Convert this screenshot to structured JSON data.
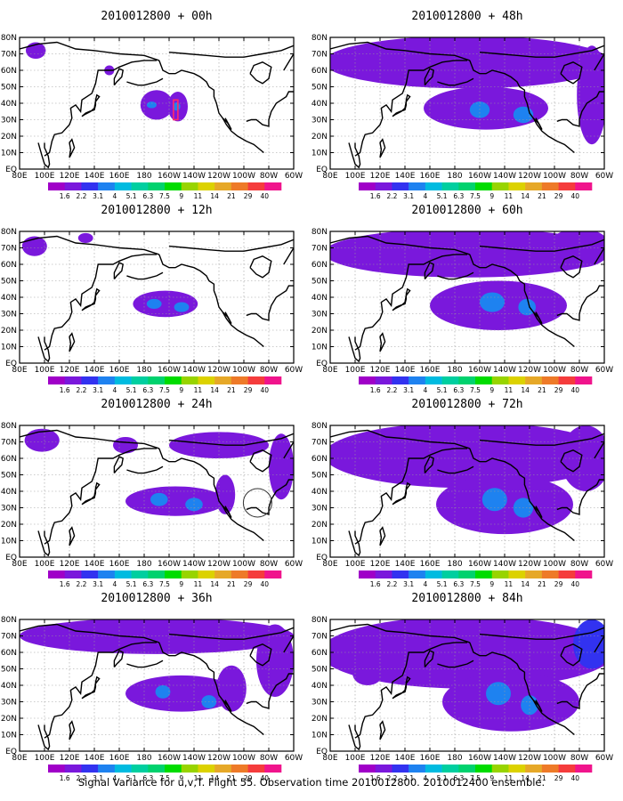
{
  "caption": "Signal Variance for u,v,T. Flight 55. Observation time 2010012800. 2010012400 ensemble.",
  "colors": {
    "background": "#ffffff",
    "coast": "#000000",
    "grid": "#9a9a9a",
    "marker": "#ff2a6a",
    "circle": "#333333"
  },
  "colorbar": {
    "labels": [
      "1.6",
      "2.2",
      "3.1",
      "4",
      "5.1",
      "6.3",
      "7.5",
      "9",
      "11",
      "14",
      "21",
      "29",
      "40"
    ],
    "colors": [
      "#a000c8",
      "#7a18dc",
      "#3232f0",
      "#1e82f0",
      "#00bbe0",
      "#00cfa0",
      "#00d26e",
      "#00dc00",
      "#98d400",
      "#dcd200",
      "#e6a828",
      "#ee7a28",
      "#f53c3c",
      "#f0148c"
    ]
  },
  "chart_data": [
    {
      "type": "heatmap",
      "title": "2010012800 + 00h",
      "xticks": [
        "80E",
        "100E",
        "120E",
        "140E",
        "160E",
        "180",
        "160W",
        "140W",
        "120W",
        "100W",
        "80W",
        "60W"
      ],
      "yticks": [
        "EQ",
        "10N",
        "20N",
        "30N",
        "40N",
        "50N",
        "60N",
        "70N",
        "80N"
      ],
      "xlim": [
        80,
        300
      ],
      "ylim": [
        0,
        80
      ],
      "grid": true,
      "observation_marker": true,
      "regions": [
        {
          "lon": 93,
          "lat": 72,
          "rx": 8,
          "ry": 5,
          "value": 1.6
        },
        {
          "lon": 152,
          "lat": 60,
          "rx": 4,
          "ry": 3,
          "value": 1.6
        },
        {
          "lon": 190,
          "lat": 39,
          "rx": 13,
          "ry": 9,
          "value": 1.8
        },
        {
          "lon": 207,
          "lat": 38,
          "rx": 8,
          "ry": 9,
          "value": 2.0
        },
        {
          "lon": 186,
          "lat": 39,
          "rx": 4,
          "ry": 2,
          "value": 3.1
        },
        {
          "lon": 206,
          "lat": 38,
          "rx": 3,
          "ry": 2.5,
          "value": 3.1
        }
      ]
    },
    {
      "type": "heatmap",
      "title": "2010012800 + 12h",
      "xticks": [
        "80E",
        "100E",
        "120E",
        "140E",
        "160E",
        "180",
        "160W",
        "140W",
        "120W",
        "100W",
        "80W",
        "60W"
      ],
      "yticks": [
        "EQ",
        "10N",
        "20N",
        "30N",
        "40N",
        "50N",
        "60N",
        "70N",
        "80N"
      ],
      "xlim": [
        80,
        300
      ],
      "ylim": [
        0,
        80
      ],
      "grid": true,
      "regions": [
        {
          "lon": 92,
          "lat": 71,
          "rx": 10,
          "ry": 6,
          "value": 1.6
        },
        {
          "lon": 133,
          "lat": 76,
          "rx": 6,
          "ry": 3,
          "value": 1.6
        },
        {
          "lon": 197,
          "lat": 36,
          "rx": 26,
          "ry": 8,
          "value": 1.8
        },
        {
          "lon": 188,
          "lat": 36,
          "rx": 6,
          "ry": 3,
          "value": 3.5
        },
        {
          "lon": 210,
          "lat": 34,
          "rx": 6,
          "ry": 3,
          "value": 3.5
        }
      ]
    },
    {
      "type": "heatmap",
      "title": "2010012800 + 24h",
      "xticks": [
        "80E",
        "100E",
        "120E",
        "140E",
        "160E",
        "180",
        "160W",
        "140W",
        "120W",
        "100W",
        "80W",
        "60W"
      ],
      "yticks": [
        "EQ",
        "10N",
        "20N",
        "30N",
        "40N",
        "50N",
        "60N",
        "70N",
        "80N"
      ],
      "xlim": [
        80,
        300
      ],
      "ylim": [
        0,
        80
      ],
      "grid": true,
      "circle_marker": true,
      "regions": [
        {
          "lon": 98,
          "lat": 71,
          "rx": 14,
          "ry": 7,
          "value": 1.6
        },
        {
          "lon": 165,
          "lat": 68,
          "rx": 10,
          "ry": 5,
          "value": 1.6
        },
        {
          "lon": 240,
          "lat": 68,
          "rx": 40,
          "ry": 8,
          "value": 1.6
        },
        {
          "lon": 290,
          "lat": 55,
          "rx": 10,
          "ry": 20,
          "value": 1.6
        },
        {
          "lon": 205,
          "lat": 34,
          "rx": 40,
          "ry": 9,
          "value": 1.8
        },
        {
          "lon": 245,
          "lat": 38,
          "rx": 8,
          "ry": 12,
          "value": 1.8
        },
        {
          "lon": 192,
          "lat": 35,
          "rx": 7,
          "ry": 4,
          "value": 3.5
        },
        {
          "lon": 220,
          "lat": 32,
          "rx": 7,
          "ry": 4,
          "value": 3.5
        }
      ]
    },
    {
      "type": "heatmap",
      "title": "2010012800 + 36h",
      "xticks": [
        "80E",
        "100E",
        "120E",
        "140E",
        "160E",
        "180",
        "160W",
        "140W",
        "120W",
        "100W",
        "80W",
        "60W"
      ],
      "yticks": [
        "EQ",
        "10N",
        "20N",
        "30N",
        "40N",
        "50N",
        "60N",
        "70N",
        "80N"
      ],
      "xlim": [
        80,
        300
      ],
      "ylim": [
        0,
        80
      ],
      "grid": true,
      "regions": [
        {
          "lon": 190,
          "lat": 70,
          "rx": 110,
          "ry": 11,
          "value": 1.6
        },
        {
          "lon": 285,
          "lat": 55,
          "rx": 15,
          "ry": 22,
          "value": 1.6
        },
        {
          "lon": 210,
          "lat": 35,
          "rx": 45,
          "ry": 11,
          "value": 1.8
        },
        {
          "lon": 250,
          "lat": 38,
          "rx": 12,
          "ry": 14,
          "value": 1.8
        },
        {
          "lon": 195,
          "lat": 36,
          "rx": 6,
          "ry": 4,
          "value": 3.5
        },
        {
          "lon": 232,
          "lat": 30,
          "rx": 6,
          "ry": 4,
          "value": 3.5
        }
      ]
    },
    {
      "type": "heatmap",
      "title": "2010012800 + 48h",
      "xticks": [
        "80E",
        "100E",
        "120E",
        "140E",
        "160E",
        "180",
        "160W",
        "140W",
        "120W",
        "100W",
        "80W",
        "60W"
      ],
      "yticks": [
        "EQ",
        "10N",
        "20N",
        "30N",
        "40N",
        "50N",
        "60N",
        "70N",
        "80N"
      ],
      "xlim": [
        80,
        300
      ],
      "ylim": [
        0,
        80
      ],
      "grid": true,
      "regions": [
        {
          "lon": 190,
          "lat": 65,
          "rx": 115,
          "ry": 16,
          "value": 1.6
        },
        {
          "lon": 205,
          "lat": 37,
          "rx": 50,
          "ry": 13,
          "value": 1.6
        },
        {
          "lon": 290,
          "lat": 45,
          "rx": 12,
          "ry": 30,
          "value": 1.6
        },
        {
          "lon": 215,
          "lat": 36,
          "rx": 32,
          "ry": 9,
          "value": 1.8
        },
        {
          "lon": 200,
          "lat": 36,
          "rx": 8,
          "ry": 5,
          "value": 3.5
        },
        {
          "lon": 235,
          "lat": 33,
          "rx": 8,
          "ry": 5,
          "value": 3.5
        }
      ]
    },
    {
      "type": "heatmap",
      "title": "2010012800 + 60h",
      "xticks": [
        "80E",
        "100E",
        "120E",
        "140E",
        "160E",
        "180",
        "160W",
        "140W",
        "120W",
        "100W",
        "80W",
        "60W"
      ],
      "yticks": [
        "EQ",
        "10N",
        "20N",
        "30N",
        "40N",
        "50N",
        "60N",
        "70N",
        "80N"
      ],
      "xlim": [
        80,
        300
      ],
      "ylim": [
        0,
        80
      ],
      "grid": true,
      "regions": [
        {
          "lon": 190,
          "lat": 67,
          "rx": 115,
          "ry": 15,
          "value": 1.6
        },
        {
          "lon": 215,
          "lat": 35,
          "rx": 55,
          "ry": 15,
          "value": 1.6
        },
        {
          "lon": 280,
          "lat": 70,
          "rx": 25,
          "ry": 12,
          "value": 1.8
        },
        {
          "lon": 215,
          "lat": 36,
          "rx": 30,
          "ry": 11,
          "value": 1.8
        },
        {
          "lon": 210,
          "lat": 37,
          "rx": 10,
          "ry": 6,
          "value": 3.5
        },
        {
          "lon": 238,
          "lat": 34,
          "rx": 7,
          "ry": 5,
          "value": 3.5
        }
      ]
    },
    {
      "type": "heatmap",
      "title": "2010012800 + 72h",
      "xticks": [
        "80E",
        "100E",
        "120E",
        "140E",
        "160E",
        "180",
        "160W",
        "140W",
        "120W",
        "100W",
        "80W",
        "60W"
      ],
      "yticks": [
        "EQ",
        "10N",
        "20N",
        "30N",
        "40N",
        "50N",
        "60N",
        "70N",
        "80N"
      ],
      "xlim": [
        80,
        300
      ],
      "ylim": [
        0,
        80
      ],
      "grid": true,
      "regions": [
        {
          "lon": 190,
          "lat": 62,
          "rx": 115,
          "ry": 20,
          "value": 1.6
        },
        {
          "lon": 220,
          "lat": 32,
          "rx": 55,
          "ry": 18,
          "value": 1.6
        },
        {
          "lon": 285,
          "lat": 60,
          "rx": 20,
          "ry": 20,
          "value": 1.8
        },
        {
          "lon": 220,
          "lat": 35,
          "rx": 30,
          "ry": 13,
          "value": 1.8
        },
        {
          "lon": 212,
          "lat": 35,
          "rx": 10,
          "ry": 7,
          "value": 3.5
        },
        {
          "lon": 235,
          "lat": 30,
          "rx": 8,
          "ry": 6,
          "value": 3.5
        }
      ]
    },
    {
      "type": "heatmap",
      "title": "2010012800 + 84h",
      "xticks": [
        "80E",
        "100E",
        "120E",
        "140E",
        "160E",
        "180",
        "160W",
        "140W",
        "120W",
        "100W",
        "80W",
        "60W"
      ],
      "yticks": [
        "EQ",
        "10N",
        "20N",
        "30N",
        "40N",
        "50N",
        "60N",
        "70N",
        "80N"
      ],
      "xlim": [
        80,
        300
      ],
      "ylim": [
        0,
        80
      ],
      "grid": true,
      "regions": [
        {
          "lon": 190,
          "lat": 60,
          "rx": 118,
          "ry": 22,
          "value": 1.6
        },
        {
          "lon": 225,
          "lat": 30,
          "rx": 55,
          "ry": 18,
          "value": 1.6
        },
        {
          "lon": 290,
          "lat": 65,
          "rx": 15,
          "ry": 15,
          "value": 2.5
        },
        {
          "lon": 220,
          "lat": 35,
          "rx": 30,
          "ry": 14,
          "value": 1.8
        },
        {
          "lon": 110,
          "lat": 47,
          "rx": 12,
          "ry": 7,
          "value": 1.8
        },
        {
          "lon": 215,
          "lat": 35,
          "rx": 10,
          "ry": 7,
          "value": 3.5
        },
        {
          "lon": 240,
          "lat": 28,
          "rx": 7,
          "ry": 6,
          "value": 3.5
        }
      ]
    }
  ]
}
